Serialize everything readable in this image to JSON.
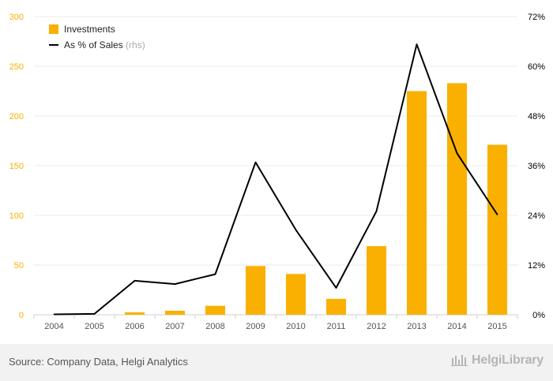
{
  "chart_data": {
    "type": "bar",
    "categories": [
      "2004",
      "2005",
      "2006",
      "2007",
      "2008",
      "2009",
      "2010",
      "2011",
      "2012",
      "2013",
      "2014",
      "2015"
    ],
    "series": [
      {
        "name": "Investments",
        "kind": "bar",
        "axis": "left",
        "color": "#f9b000",
        "values": [
          0,
          0,
          2.5,
          4,
          9,
          49,
          41,
          16,
          69,
          225,
          233,
          171
        ]
      },
      {
        "name": "As % of Sales",
        "kind": "line",
        "axis": "right",
        "color": "#000000",
        "values": [
          0.1,
          0.2,
          8.2,
          7.4,
          9.8,
          36.8,
          20.5,
          6.5,
          25.0,
          65.3,
          39.0,
          24.2
        ]
      }
    ],
    "left_axis": {
      "ylim": [
        0,
        300
      ],
      "ticks": [
        0,
        50,
        100,
        150,
        200,
        250,
        300
      ],
      "tick_labels": [
        "0",
        "50",
        "100",
        "150",
        "200",
        "250",
        "300"
      ],
      "label_color": "#f9b000"
    },
    "right_axis": {
      "ylim": [
        0,
        72
      ],
      "ticks": [
        0,
        12,
        24,
        36,
        48,
        60,
        72
      ],
      "tick_labels": [
        "0%",
        "12%",
        "24%",
        "36%",
        "48%",
        "60%",
        "72%"
      ],
      "label_color": "#000000"
    },
    "grid": true,
    "legend": {
      "position": "top-left",
      "bar_label": "Investments",
      "line_label": "As % of Sales",
      "line_suffix": "(rhs)"
    }
  },
  "footer": {
    "source": "Source: Company Data, Helgi Analytics",
    "brand": "HelgiLibrary"
  }
}
